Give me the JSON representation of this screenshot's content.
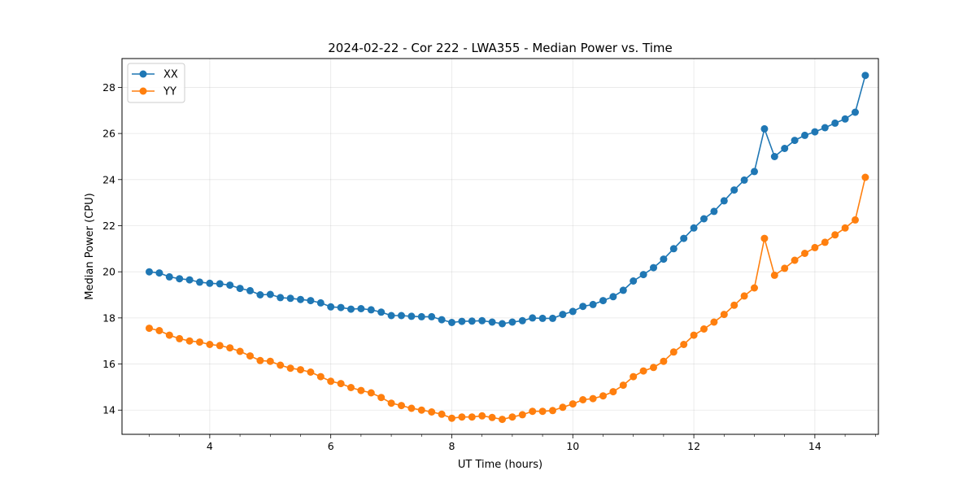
{
  "chart_data": {
    "type": "line",
    "title": "2024-02-22 - Cor 222 - LWA355 - Median Power vs. Time",
    "xlabel": "UT Time (hours)",
    "ylabel": "Median Power (CPU)",
    "xlim": [
      2.55,
      15.05
    ],
    "ylim": [
      12.95,
      29.25
    ],
    "xticks": [
      4,
      6,
      8,
      10,
      12,
      14
    ],
    "xtick_labels": [
      "4",
      "6",
      "8",
      "10",
      "12",
      "14"
    ],
    "yticks": [
      14,
      16,
      18,
      20,
      22,
      24,
      26,
      28
    ],
    "ytick_labels": [
      "14",
      "16",
      "18",
      "20",
      "22",
      "24",
      "26",
      "28"
    ],
    "grid": true,
    "legend_position": "top-left",
    "x": [
      3.0,
      3.167,
      3.333,
      3.5,
      3.667,
      3.833,
      4.0,
      4.167,
      4.333,
      4.5,
      4.667,
      4.833,
      5.0,
      5.167,
      5.333,
      5.5,
      5.667,
      5.833,
      6.0,
      6.167,
      6.333,
      6.5,
      6.667,
      6.833,
      7.0,
      7.167,
      7.333,
      7.5,
      7.667,
      7.833,
      8.0,
      8.167,
      8.333,
      8.5,
      8.667,
      8.833,
      9.0,
      9.167,
      9.333,
      9.5,
      9.667,
      9.833,
      10.0,
      10.167,
      10.333,
      10.5,
      10.667,
      10.833,
      11.0,
      11.167,
      11.333,
      11.5,
      11.667,
      11.833,
      12.0,
      12.167,
      12.333,
      12.5,
      12.667,
      12.833,
      13.0,
      13.167,
      13.333,
      13.5,
      13.667,
      13.833,
      14.0,
      14.167,
      14.333,
      14.5,
      14.667,
      14.833
    ],
    "series": [
      {
        "name": "XX",
        "color": "#1f77b4",
        "values": [
          20.0,
          19.95,
          19.78,
          19.7,
          19.65,
          19.55,
          19.5,
          19.48,
          19.42,
          19.28,
          19.18,
          19.0,
          19.02,
          18.88,
          18.85,
          18.8,
          18.75,
          18.65,
          18.48,
          18.45,
          18.38,
          18.4,
          18.35,
          18.25,
          18.1,
          18.1,
          18.07,
          18.05,
          18.05,
          17.92,
          17.8,
          17.85,
          17.86,
          17.88,
          17.82,
          17.75,
          17.82,
          17.88,
          18.0,
          17.98,
          17.98,
          18.15,
          18.28,
          18.5,
          18.58,
          18.75,
          18.92,
          19.2,
          19.6,
          19.88,
          20.18,
          20.55,
          21.0,
          21.45,
          21.9,
          22.3,
          22.62,
          23.08,
          23.55,
          23.98,
          24.35,
          26.2,
          25.0,
          25.35,
          25.7,
          25.92,
          26.07,
          26.25,
          26.45,
          26.63,
          26.92,
          28.52
        ]
      },
      {
        "name": "YY",
        "color": "#ff7f0e",
        "values": [
          17.55,
          17.45,
          17.25,
          17.1,
          17.0,
          16.95,
          16.85,
          16.8,
          16.7,
          16.55,
          16.35,
          16.15,
          16.12,
          15.95,
          15.82,
          15.75,
          15.65,
          15.45,
          15.25,
          15.15,
          14.98,
          14.85,
          14.75,
          14.55,
          14.3,
          14.2,
          14.08,
          14.0,
          13.92,
          13.82,
          13.65,
          13.7,
          13.7,
          13.75,
          13.68,
          13.6,
          13.7,
          13.8,
          13.95,
          13.95,
          13.98,
          14.12,
          14.27,
          14.45,
          14.5,
          14.62,
          14.8,
          15.08,
          15.45,
          15.7,
          15.85,
          16.12,
          16.52,
          16.85,
          17.25,
          17.52,
          17.82,
          18.15,
          18.55,
          18.95,
          19.3,
          21.45,
          19.85,
          20.15,
          20.5,
          20.8,
          21.05,
          21.28,
          21.6,
          21.9,
          22.25,
          24.1
        ]
      }
    ]
  }
}
